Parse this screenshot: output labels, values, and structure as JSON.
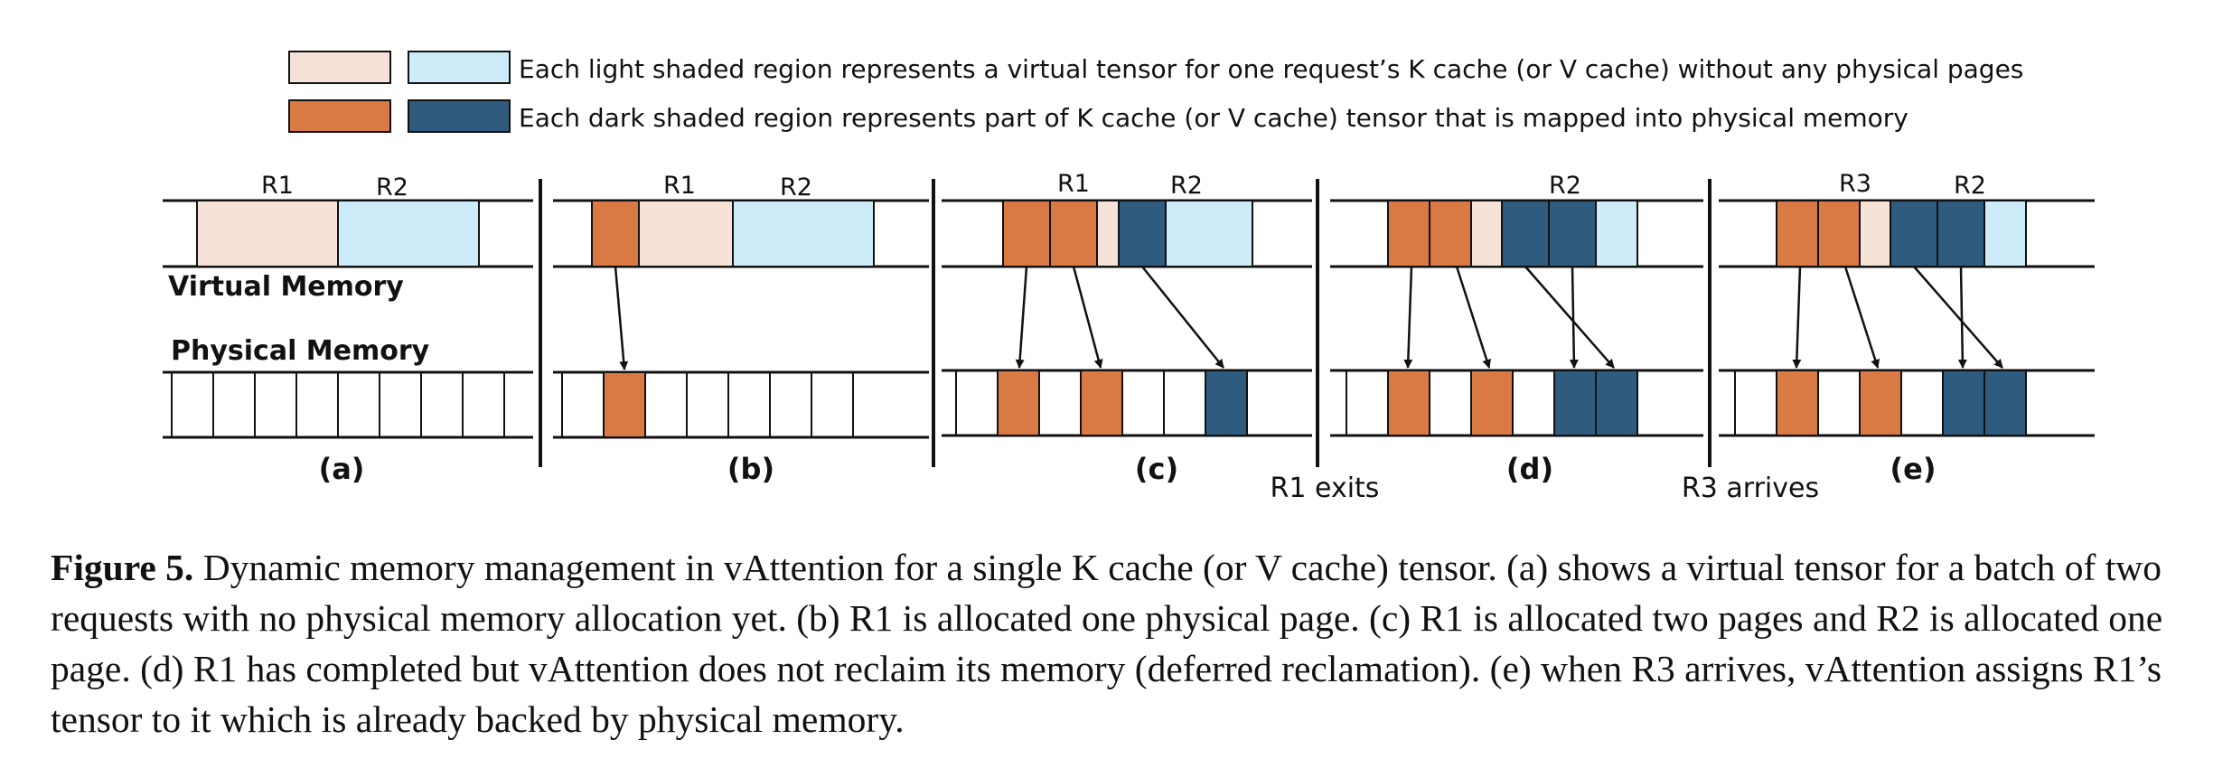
{
  "colors": {
    "light_orange": "#F6E2D7",
    "light_blue": "#CDEBF8",
    "dark_orange": "#D97A45",
    "dark_blue": "#2E5B7E",
    "line": "#111111"
  },
  "legend": {
    "light_text": "Each light shaded region represents a virtual tensor for one request’s K cache (or V cache) without any physical pages",
    "dark_text": "Each dark shaded region represents part of K cache (or V cache) tensor that is mapped into physical memory"
  },
  "labels": {
    "virtual_memory": "Virtual Memory",
    "physical_memory": "Physical Memory"
  },
  "panels": {
    "a": {
      "label": "(a)",
      "req_left": "R1",
      "req_right": "R2"
    },
    "b": {
      "label": "(b)",
      "req_left": "R1",
      "req_right": "R2"
    },
    "c": {
      "label": "(c)",
      "req_left": "R1",
      "req_right": "R2"
    },
    "d": {
      "label": "(d)",
      "req_right": "R2"
    },
    "e": {
      "label": "(e)",
      "req_left": "R3",
      "req_right": "R2"
    }
  },
  "events": {
    "r1_exits": "R1 exits",
    "r3_arrives": "R3 arrives"
  },
  "caption": {
    "figure_label": "Figure 5.",
    "text": "Dynamic memory management in vAttention for a single K cache (or V cache) tensor. (a) shows a virtual tensor for a batch of two requests with no physical memory allocation yet. (b) R1 is allocated one physical page. (c) R1 is allocated two pages and R2 is allocated one page. (d) R1 has completed but vAttention does not reclaim its memory (deferred reclamation). (e) when R3 arrives, vAttention assigns R1’s tensor to it which is already backed by physical memory."
  }
}
